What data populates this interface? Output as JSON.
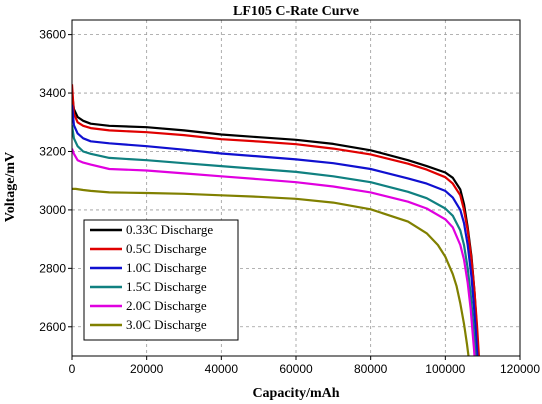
{
  "chart_data": {
    "type": "line",
    "title": "LF105 C-Rate Curve",
    "xlabel": "Capacity/mAh",
    "ylabel": "Voltage/mV",
    "xlim": [
      0,
      120000
    ],
    "ylim": [
      2500,
      3650
    ],
    "x_ticks": [
      0,
      20000,
      40000,
      60000,
      80000,
      100000,
      120000
    ],
    "x_tick_labels": [
      "0",
      "20000",
      "40000",
      "60000",
      "80000",
      "100000",
      "120000"
    ],
    "y_ticks": [
      2600,
      2800,
      3000,
      3200,
      3400,
      3600
    ],
    "y_tick_labels": [
      "2600",
      "2800",
      "3000",
      "3200",
      "3400",
      "3600"
    ],
    "grid": true,
    "legend_position": "bottom-left",
    "series": [
      {
        "name": "0.33C Discharge",
        "color": "#000000",
        "points": [
          [
            0,
            3400
          ],
          [
            500,
            3345
          ],
          [
            1500,
            3318
          ],
          [
            3000,
            3305
          ],
          [
            5000,
            3295
          ],
          [
            10000,
            3288
          ],
          [
            20000,
            3283
          ],
          [
            30000,
            3272
          ],
          [
            40000,
            3258
          ],
          [
            50000,
            3249
          ],
          [
            60000,
            3240
          ],
          [
            70000,
            3226
          ],
          [
            80000,
            3204
          ],
          [
            90000,
            3170
          ],
          [
            95000,
            3150
          ],
          [
            100000,
            3128
          ],
          [
            102000,
            3110
          ],
          [
            104000,
            3070
          ],
          [
            105000,
            3020
          ],
          [
            106000,
            2940
          ],
          [
            107000,
            2840
          ],
          [
            107800,
            2720
          ],
          [
            108400,
            2600
          ],
          [
            108800,
            2500
          ]
        ]
      },
      {
        "name": "0.5C Discharge",
        "color": "#e00000",
        "points": [
          [
            0,
            3430
          ],
          [
            500,
            3330
          ],
          [
            1500,
            3300
          ],
          [
            3000,
            3288
          ],
          [
            5000,
            3280
          ],
          [
            10000,
            3272
          ],
          [
            20000,
            3266
          ],
          [
            30000,
            3256
          ],
          [
            40000,
            3242
          ],
          [
            50000,
            3234
          ],
          [
            60000,
            3225
          ],
          [
            70000,
            3210
          ],
          [
            80000,
            3190
          ],
          [
            90000,
            3158
          ],
          [
            95000,
            3138
          ],
          [
            100000,
            3112
          ],
          [
            102000,
            3090
          ],
          [
            104000,
            3050
          ],
          [
            105000,
            3000
          ],
          [
            106000,
            2930
          ],
          [
            107000,
            2830
          ],
          [
            107800,
            2720
          ],
          [
            108500,
            2600
          ],
          [
            109000,
            2500
          ]
        ]
      },
      {
        "name": "1.0C Discharge",
        "color": "#1010d0",
        "points": [
          [
            0,
            3360
          ],
          [
            500,
            3290
          ],
          [
            1500,
            3262
          ],
          [
            3000,
            3245
          ],
          [
            5000,
            3235
          ],
          [
            10000,
            3228
          ],
          [
            20000,
            3218
          ],
          [
            30000,
            3206
          ],
          [
            40000,
            3193
          ],
          [
            50000,
            3183
          ],
          [
            60000,
            3173
          ],
          [
            70000,
            3160
          ],
          [
            80000,
            3140
          ],
          [
            90000,
            3108
          ],
          [
            95000,
            3090
          ],
          [
            100000,
            3065
          ],
          [
            102000,
            3042
          ],
          [
            104000,
            3000
          ],
          [
            105000,
            2955
          ],
          [
            106000,
            2880
          ],
          [
            107000,
            2770
          ],
          [
            107600,
            2680
          ],
          [
            108200,
            2580
          ],
          [
            108600,
            2500
          ]
        ]
      },
      {
        "name": "1.5C Discharge",
        "color": "#108080",
        "points": [
          [
            0,
            3290
          ],
          [
            500,
            3245
          ],
          [
            1500,
            3218
          ],
          [
            3000,
            3200
          ],
          [
            5000,
            3192
          ],
          [
            10000,
            3178
          ],
          [
            20000,
            3170
          ],
          [
            30000,
            3160
          ],
          [
            40000,
            3150
          ],
          [
            50000,
            3140
          ],
          [
            60000,
            3130
          ],
          [
            70000,
            3115
          ],
          [
            80000,
            3095
          ],
          [
            90000,
            3062
          ],
          [
            95000,
            3040
          ],
          [
            100000,
            3005
          ],
          [
            102000,
            2980
          ],
          [
            104000,
            2930
          ],
          [
            105000,
            2880
          ],
          [
            106000,
            2800
          ],
          [
            106800,
            2710
          ],
          [
            107400,
            2620
          ],
          [
            107900,
            2540
          ],
          [
            108100,
            2500
          ]
        ]
      },
      {
        "name": "2.0C Discharge",
        "color": "#e000e0",
        "points": [
          [
            0,
            3210
          ],
          [
            500,
            3192
          ],
          [
            1500,
            3170
          ],
          [
            3000,
            3162
          ],
          [
            5000,
            3155
          ],
          [
            10000,
            3140
          ],
          [
            20000,
            3135
          ],
          [
            30000,
            3125
          ],
          [
            40000,
            3115
          ],
          [
            50000,
            3105
          ],
          [
            60000,
            3095
          ],
          [
            70000,
            3080
          ],
          [
            80000,
            3060
          ],
          [
            90000,
            3028
          ],
          [
            95000,
            3005
          ],
          [
            100000,
            2968
          ],
          [
            102000,
            2940
          ],
          [
            104000,
            2880
          ],
          [
            105000,
            2830
          ],
          [
            106000,
            2750
          ],
          [
            106800,
            2660
          ],
          [
            107300,
            2580
          ],
          [
            107700,
            2520
          ],
          [
            107800,
            2500
          ]
        ]
      },
      {
        "name": "3.0C Discharge",
        "color": "#808000",
        "points": [
          [
            0,
            3072
          ],
          [
            1000,
            3072
          ],
          [
            3000,
            3068
          ],
          [
            5000,
            3065
          ],
          [
            10000,
            3060
          ],
          [
            20000,
            3058
          ],
          [
            30000,
            3055
          ],
          [
            40000,
            3050
          ],
          [
            50000,
            3045
          ],
          [
            60000,
            3038
          ],
          [
            70000,
            3025
          ],
          [
            80000,
            3002
          ],
          [
            90000,
            2960
          ],
          [
            95000,
            2920
          ],
          [
            98000,
            2880
          ],
          [
            100000,
            2840
          ],
          [
            102000,
            2780
          ],
          [
            103000,
            2740
          ],
          [
            104000,
            2680
          ],
          [
            105000,
            2610
          ],
          [
            105800,
            2540
          ],
          [
            106200,
            2500
          ]
        ]
      }
    ]
  }
}
